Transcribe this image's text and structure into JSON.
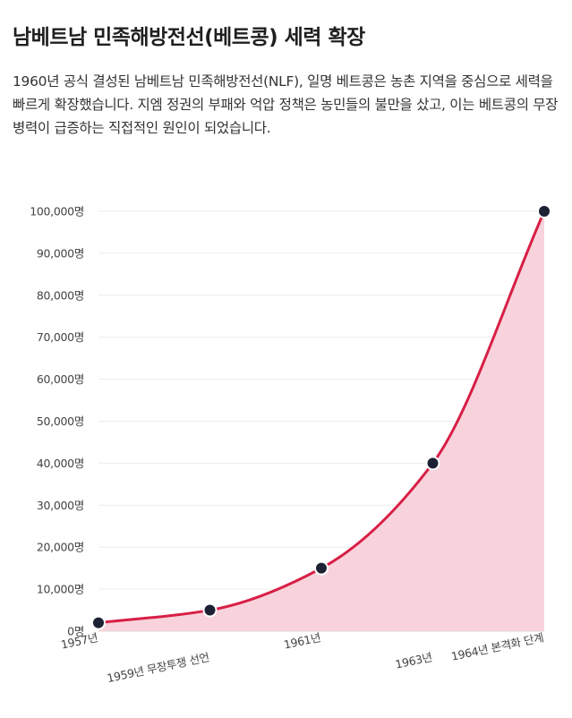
{
  "title": "남베트남 민족해방전선(베트콩) 세력 확장",
  "description": "1960년 공식 결성된 남베트남 민족해방전선(NLF), 일명 베트콩은 농촌 지역을 중심으로 세력을 빠르게 확장했습니다. 지엠 정권의 부패와 억압 정책은 농민들의 불만을 샀고, 이는 베트콩의 무장 병력이 급증하는 직접적인 원인이 되었습니다.",
  "chart_data": {
    "type": "area",
    "categories": [
      "1957년",
      "1959년 무장투쟁 선언",
      "1961년",
      "1963년",
      "1964년 본격화 단계"
    ],
    "series": [
      {
        "values": [
          2000,
          5000,
          15000,
          40000,
          100000
        ]
      }
    ],
    "title": "",
    "xlabel": "",
    "ylabel": "",
    "ylim": [
      0,
      100000
    ],
    "y_ticks": [
      0,
      10000,
      20000,
      30000,
      40000,
      50000,
      60000,
      70000,
      80000,
      90000,
      100000
    ],
    "y_tick_labels": [
      "0명",
      "10,000명",
      "20,000명",
      "30,000명",
      "40,000명",
      "50,000명",
      "60,000명",
      "70,000명",
      "80,000명",
      "90,000명",
      "100,000명"
    ],
    "grid": true,
    "legend": "none",
    "colors": {
      "line": "#d81f45",
      "fill": "#f8d3dc",
      "marker": "#1c2233",
      "grid": "#ececec"
    }
  }
}
